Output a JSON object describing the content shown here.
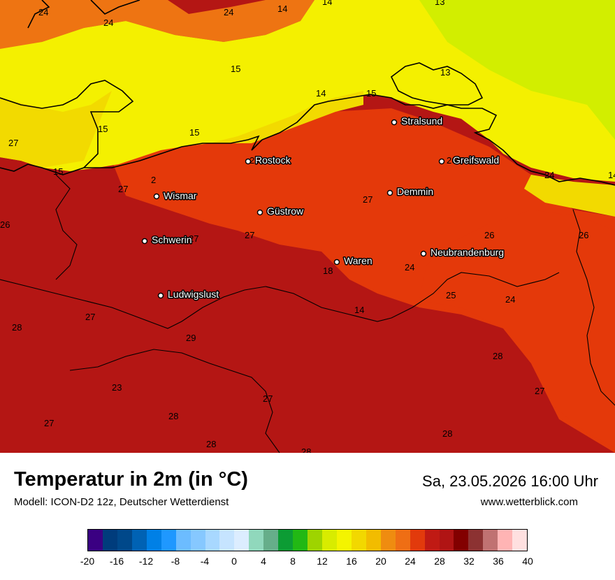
{
  "header": {
    "title": "Temperatur in 2m (in °C)",
    "model": "Modell: ICON-D2 12z, Deutscher Wetterdienst",
    "datetime": "Sa, 23.05.2026 16:00 Uhr",
    "website": "www.wetterblick.com"
  },
  "colors": {
    "sea": "#f4f000",
    "sea_alt": "#f2da00",
    "sea_cool": "#d2ee00",
    "land_warm": "#e4390a",
    "land_hot": "#b41614",
    "land_mid": "#ee7412",
    "coast": "#000000"
  },
  "cities": [
    {
      "name": "Stralsund"
    },
    {
      "name": "Rostock"
    },
    {
      "name": "Greifswald"
    },
    {
      "name": "Wismar"
    },
    {
      "name": "Demmin"
    },
    {
      "name": "Güstrow"
    },
    {
      "name": "Schwerin"
    },
    {
      "name": "Neubrandenburg"
    },
    {
      "name": "Waren"
    },
    {
      "name": "Ludwigslust"
    }
  ],
  "isotherm_labels": [
    "24",
    "24",
    "24",
    "14",
    "14",
    "13",
    "15",
    "13",
    "14",
    "15",
    "15",
    "15",
    "27",
    "15",
    "26",
    "27",
    "2",
    "26",
    "27",
    "27",
    "18",
    "24",
    "26",
    "24",
    "25",
    "24",
    "14",
    "14",
    "27",
    "28",
    "29",
    "28",
    "23",
    "27",
    "28",
    "27",
    "27",
    "28",
    "28",
    "28",
    "26",
    "26",
    "27",
    "27"
  ],
  "legend": {
    "colors": [
      "#3a0082",
      "#003c7c",
      "#00488a",
      "#0062b4",
      "#0080e6",
      "#1f98ff",
      "#6cbcff",
      "#86c8ff",
      "#a8d8ff",
      "#c6e4ff",
      "#dcedff",
      "#90d8bc",
      "#66ae8a",
      "#0c9c34",
      "#22b814",
      "#9ed400",
      "#d8ec00",
      "#f4f400",
      "#f2d800",
      "#f2bc00",
      "#ef8c10",
      "#ef6e14",
      "#e23a0c",
      "#c01a14",
      "#b01414",
      "#820000",
      "#8c3232",
      "#c07272",
      "#ffb4b4",
      "#ffe0e0"
    ],
    "ticks": [
      "-20",
      "-16",
      "-12",
      "-8",
      "-4",
      "0",
      "4",
      "8",
      "12",
      "16",
      "20",
      "24",
      "28",
      "32",
      "36",
      "40"
    ]
  }
}
